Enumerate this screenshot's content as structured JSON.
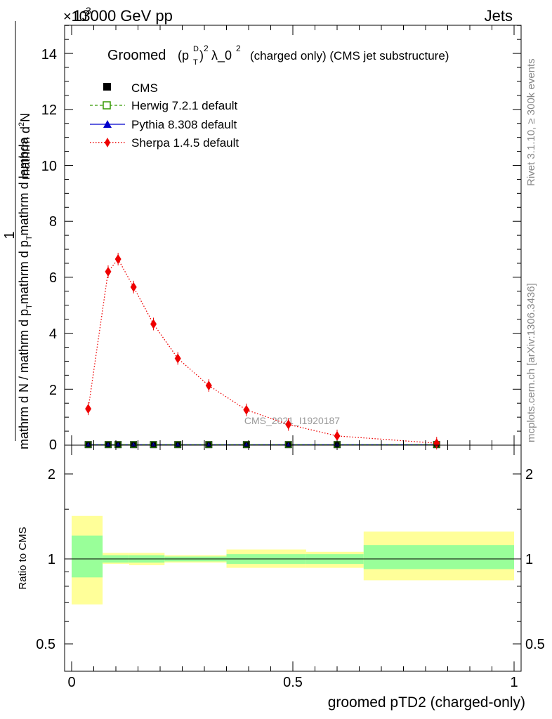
{
  "header": {
    "scale_prefix": "×10",
    "scale_exp": "3",
    "energy": "13000 GeV pp",
    "process": "Jets"
  },
  "main_plot": {
    "title_prefix": "Groomed",
    "title_p": "(p",
    "title_sup_d": "D",
    "title_sub_t": "T",
    "title_close": ")",
    "title_sup_2": "2",
    "title_lambda": "λ_0",
    "title_sup_2b": "2",
    "title_suffix": "(charged only) (CMS jet substructure)",
    "ylabel_line1": "1",
    "ylabel_line2": "mathrm d N / mathrm d p",
    "ylabel_line2_sub": "T",
    "ylabel_line2_tail": "mathrm d p",
    "ylabel_line2_sub2": "T",
    "ylabel_line2_end": "mathrm d lambda",
    "ylabel_line3": "mathrm d",
    "ylabel_line3_sup": "2",
    "ylabel_line3_end": "N",
    "watermark": "CMS_2021_I1920187",
    "yticks": [
      "2",
      "4",
      "6",
      "8",
      "10",
      "12",
      "14",
      "0"
    ]
  },
  "side_labels": {
    "rivet": "Rivet 3.1.10, ≥ 300k events",
    "mcplots": "mcplots.cern.ch [arXiv:1306.3436]"
  },
  "legend": {
    "cms": "CMS",
    "herwig": "Herwig 7.2.1 default",
    "pythia": "Pythia 8.308 default",
    "sherpa": "Sherpa 1.4.5 default"
  },
  "ratio_plot": {
    "ylabel": "Ratio to CMS",
    "yticks": [
      "0.5",
      "1",
      "2"
    ],
    "yticks_right": [
      "0.5",
      "1",
      "2"
    ]
  },
  "xaxis": {
    "label": "groomed pTD2 (charged-only)",
    "ticks": [
      "0",
      "0.5",
      "1"
    ]
  },
  "colors": {
    "cms": "#000000",
    "herwig": "#339900",
    "pythia": "#0000cc",
    "sherpa": "#ee0000",
    "band_outer": "#ffff99",
    "band_inner": "#99ff99"
  },
  "chart_data": {
    "type": "scatter",
    "title": "Groomed (p_T^D)^2 λ_0^2 (charged only) (CMS jet substructure)",
    "xlabel": "groomed pTD2 (charged-only)",
    "ylabel": "1/(dN/dpT) d²N/(dpT dλ)",
    "y_scale_factor": 1000,
    "xlim": [
      0,
      1
    ],
    "ylim": [
      0,
      15
    ],
    "bin_edges": [
      0.0,
      0.075,
      0.1,
      0.125,
      0.15,
      0.2,
      0.25,
      0.35,
      0.45,
      0.525,
      0.65,
      1.0
    ],
    "x": [
      0.0375,
      0.0825,
      0.105,
      0.14,
      0.185,
      0.24,
      0.31,
      0.395,
      0.49,
      0.6,
      0.825
    ],
    "series": [
      {
        "name": "CMS",
        "marker": "square",
        "values": [
          0.02,
          0.02,
          0.02,
          0.02,
          0.02,
          0.02,
          0.02,
          0.02,
          0.02,
          0.02,
          0.02
        ]
      },
      {
        "name": "Herwig 7.2.1 default",
        "marker": "open-square",
        "values": [
          0.02,
          0.02,
          0.02,
          0.02,
          0.02,
          0.02,
          0.02,
          0.02,
          0.02,
          0.02,
          0.02
        ]
      },
      {
        "name": "Pythia 8.308 default",
        "marker": "triangle",
        "values": [
          0.02,
          0.02,
          0.02,
          0.02,
          0.02,
          0.02,
          0.02,
          0.02,
          0.02,
          0.02,
          0.02
        ]
      },
      {
        "name": "Sherpa 1.4.5 default",
        "marker": "diamond",
        "values": [
          1.3,
          6.2,
          6.65,
          5.65,
          4.33,
          3.1,
          2.13,
          1.26,
          0.74,
          0.33,
          0.07
        ]
      }
    ],
    "ratio": {
      "ylabel": "Ratio to CMS",
      "ylim": [
        0.4,
        2.3
      ],
      "bands": [
        {
          "x0": 0.0,
          "x1": 0.07,
          "outer": [
            0.69,
            1.42
          ],
          "inner": [
            0.86,
            1.21
          ]
        },
        {
          "x0": 0.07,
          "x1": 0.13,
          "outer": [
            0.96,
            1.05
          ],
          "inner": [
            0.97,
            1.03
          ]
        },
        {
          "x0": 0.13,
          "x1": 0.21,
          "outer": [
            0.95,
            1.05
          ],
          "inner": [
            0.97,
            1.03
          ]
        },
        {
          "x0": 0.21,
          "x1": 0.35,
          "outer": [
            0.97,
            1.03
          ],
          "inner": [
            0.98,
            1.02
          ]
        },
        {
          "x0": 0.35,
          "x1": 0.53,
          "outer": [
            0.93,
            1.08
          ],
          "inner": [
            0.96,
            1.04
          ]
        },
        {
          "x0": 0.53,
          "x1": 0.66,
          "outer": [
            0.93,
            1.06
          ],
          "inner": [
            0.96,
            1.04
          ]
        },
        {
          "x0": 0.66,
          "x1": 1.0,
          "outer": [
            0.84,
            1.25
          ],
          "inner": [
            0.92,
            1.12
          ]
        }
      ]
    }
  }
}
